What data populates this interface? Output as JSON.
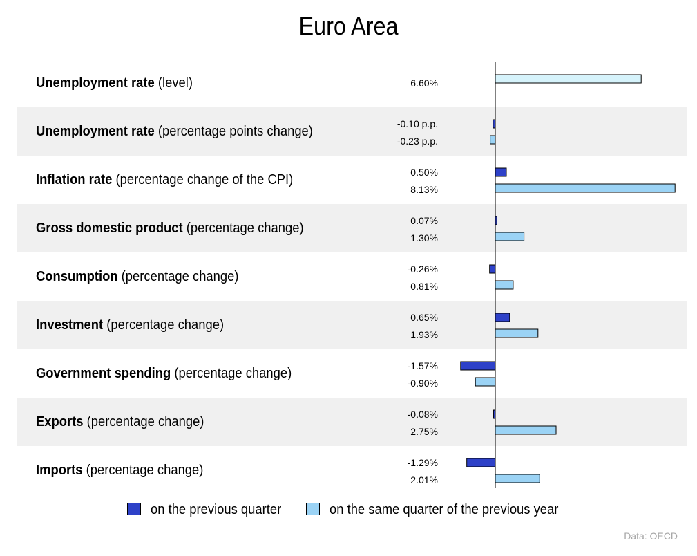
{
  "chart_data": {
    "type": "bar",
    "orientation": "horizontal",
    "title": "Euro Area",
    "source": "Data: OECD",
    "legend_placement": "bottom",
    "colors": {
      "quarter": "#2e41c8",
      "year": "#9bd3f5",
      "year_level": "#d6f3fb",
      "row_shade": "#f0f0f0"
    },
    "series": [
      {
        "name": "on the previous quarter",
        "key": "quarter"
      },
      {
        "name": "on the same quarter of the previous year",
        "key": "year"
      }
    ],
    "rows": [
      {
        "bold": "Unemployment rate",
        "rest": "(level)",
        "quarter": null,
        "quarter_label": "",
        "year": 6.6,
        "year_label": "6.60%",
        "level": true
      },
      {
        "bold": "Unemployment rate",
        "rest": "(percentage points change)",
        "quarter": -0.1,
        "quarter_label": "-0.10 p.p.",
        "year": -0.23,
        "year_label": "-0.23 p.p."
      },
      {
        "bold": "Inflation rate",
        "rest": "(percentage change of the CPI)",
        "quarter": 0.5,
        "quarter_label": "0.50%",
        "year": 8.13,
        "year_label": "8.13%"
      },
      {
        "bold": "Gross domestic product",
        "rest": "(percentage change)",
        "quarter": 0.07,
        "quarter_label": "0.07%",
        "year": 1.3,
        "year_label": "1.30%"
      },
      {
        "bold": "Consumption",
        "rest": "(percentage change)",
        "quarter": -0.26,
        "quarter_label": "-0.26%",
        "year": 0.81,
        "year_label": "0.81%"
      },
      {
        "bold": "Investment",
        "rest": "(percentage change)",
        "quarter": 0.65,
        "quarter_label": "0.65%",
        "year": 1.93,
        "year_label": "1.93%"
      },
      {
        "bold": "Government spending",
        "rest": "(percentage change)",
        "quarter": -1.57,
        "quarter_label": "-1.57%",
        "year": -0.9,
        "year_label": "-0.90%"
      },
      {
        "bold": "Exports",
        "rest": "(percentage change)",
        "quarter": -0.08,
        "quarter_label": "-0.08%",
        "year": 2.75,
        "year_label": "2.75%"
      },
      {
        "bold": "Imports",
        "rest": "(percentage change)",
        "quarter": -1.29,
        "quarter_label": "-1.29%",
        "year": 2.01,
        "year_label": "2.01%"
      }
    ]
  }
}
